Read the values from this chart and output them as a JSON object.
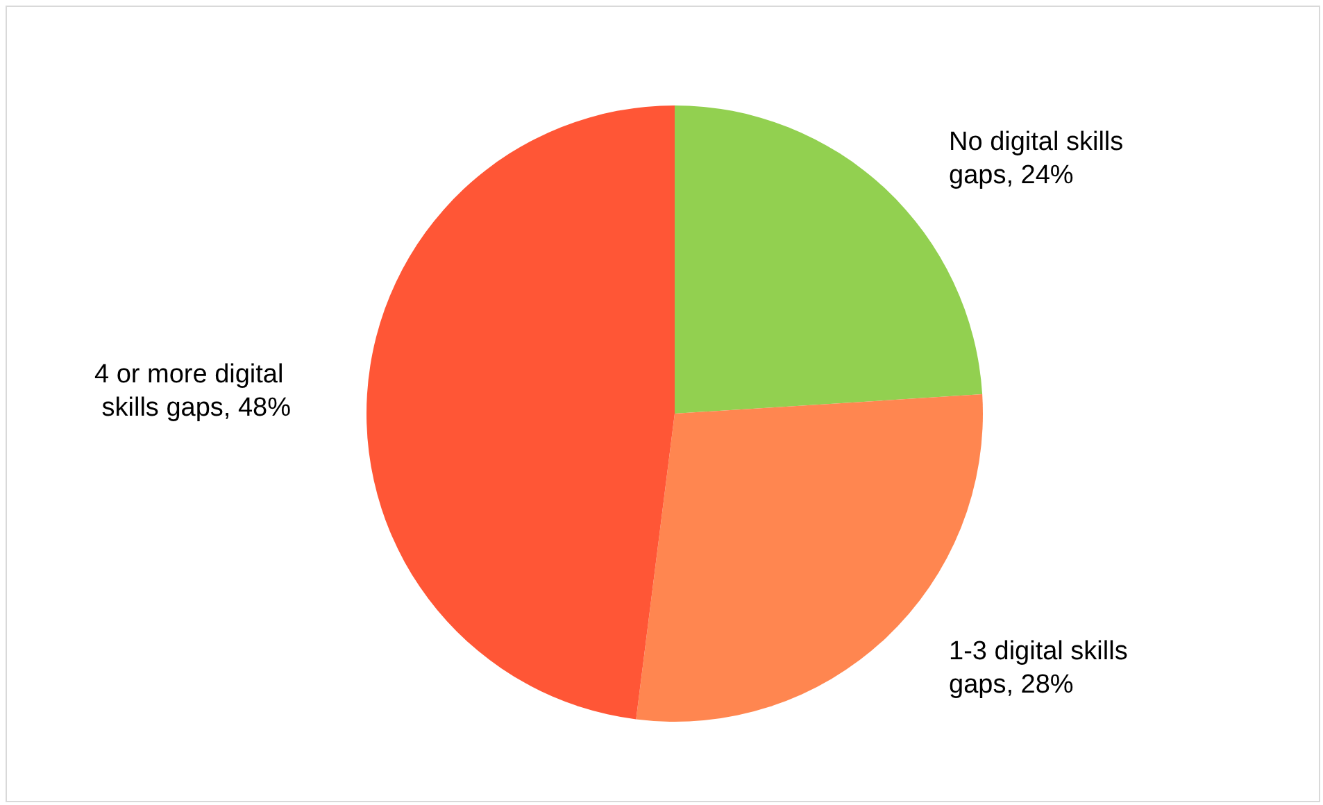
{
  "chart_data": {
    "type": "pie",
    "categories": [
      "No digital skills gaps",
      "1-3 digital skills gaps",
      "4 or more digital skills gaps"
    ],
    "values": [
      24,
      28,
      48
    ],
    "value_labels": [
      "24%",
      "28%",
      "48%"
    ],
    "colors": [
      "#92d050",
      "#ff8650",
      "#ff5636"
    ],
    "legend": false
  }
}
